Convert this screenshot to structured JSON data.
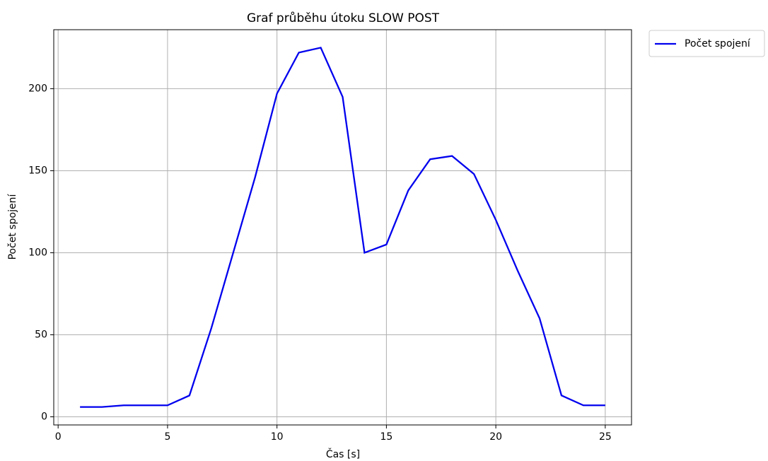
{
  "chart_data": {
    "type": "line",
    "title": "Graf průběhu útoku SLOW POST",
    "x_label": "Čas [s]",
    "y_label": "Počet spojení",
    "x": [
      1,
      2,
      3,
      4,
      5,
      6,
      7,
      8,
      9,
      10,
      11,
      12,
      13,
      14,
      15,
      16,
      17,
      18,
      19,
      20,
      21,
      22,
      23,
      24,
      25
    ],
    "series": [
      {
        "name": "Počet spojení",
        "color": "#0000ee",
        "values": [
          6,
          6,
          7,
          7,
          7,
          13,
          54,
          100,
          146,
          197,
          222,
          225,
          195,
          100,
          105,
          138,
          157,
          159,
          148,
          120,
          89,
          60,
          13,
          7,
          7
        ]
      }
    ],
    "xlim": [
      -0.2,
      26.2
    ],
    "xticks": [
      0,
      5,
      10,
      15,
      20,
      25
    ],
    "ylim": [
      -4.95,
      235.95
    ],
    "yticks": [
      0,
      50,
      100,
      150,
      200
    ],
    "grid": true,
    "legend": "outside-upper-right"
  }
}
